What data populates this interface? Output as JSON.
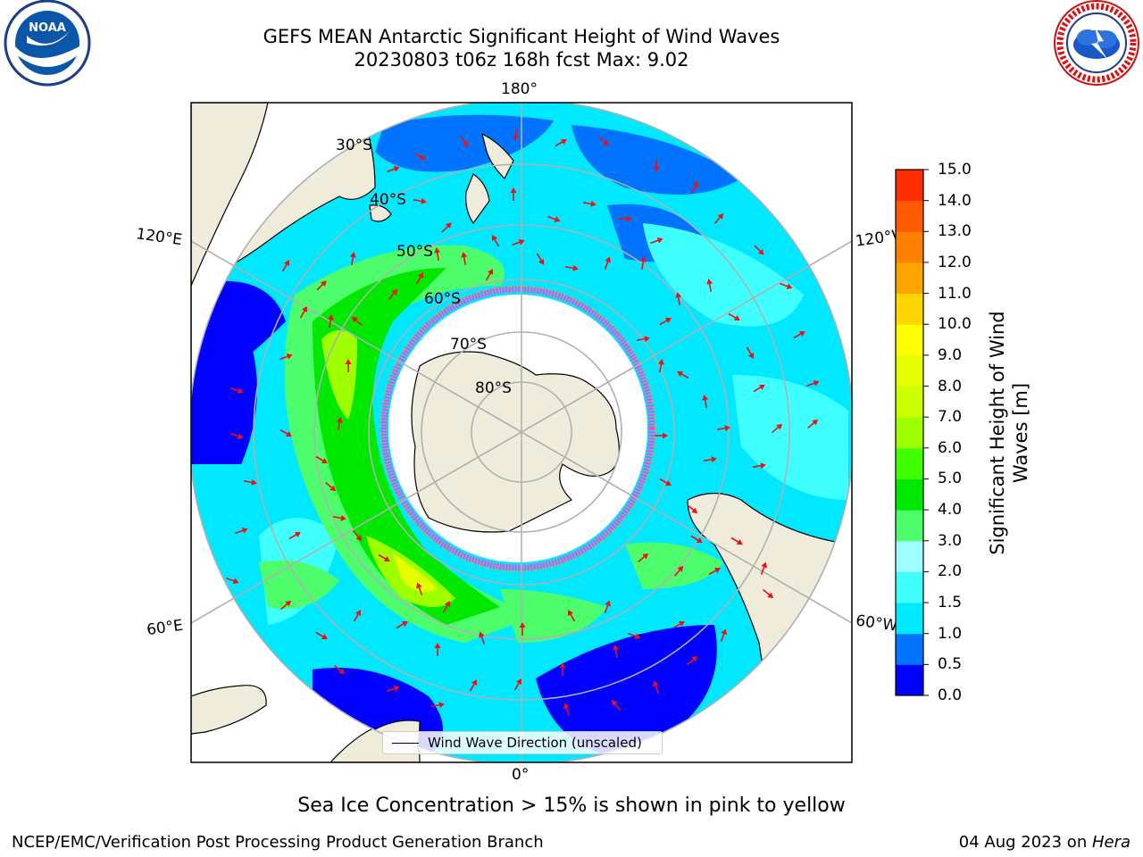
{
  "title_line1": "GEFS MEAN Antarctic Significant Height of Wind Waves",
  "title_line2": "20230803 t06z 168h fcst   Max: 9.02",
  "logos": {
    "noaa_text": "NOAA",
    "noaa_ring": "NATIONAL OCEANIC AND ATMOSPHERIC ADMINISTRATION · U.S. DEPARTMENT OF COMMERCE",
    "nws_ring": "NATIONAL WEATHER SERVICE"
  },
  "map": {
    "longitude_labels": [
      "180°",
      "120°E",
      "120°W",
      "60°E",
      "60°W",
      "0°"
    ],
    "latitude_labels": [
      "30°S",
      "40°S",
      "50°S",
      "60°S",
      "70°S",
      "80°S"
    ],
    "colors": {
      "land": "#efecdc",
      "sea_ice": "#ffffff",
      "sea_ice_edge": "#ff44cc",
      "arrows": "#ee1111",
      "grid": "#b0b0b0"
    }
  },
  "legend": {
    "label": "Wind Wave Direction (unscaled)"
  },
  "colorbar": {
    "title": "Significant Height of Wind Waves [m]",
    "tick_labels": [
      "0.0",
      "0.5",
      "1.0",
      "1.5",
      "2.0",
      "3.0",
      "4.0",
      "5.0",
      "6.0",
      "7.0",
      "8.0",
      "9.0",
      "10.0",
      "11.0",
      "12.0",
      "13.0",
      "14.0",
      "15.0"
    ],
    "colors": [
      "#0000ff",
      "#0073ff",
      "#00e8ff",
      "#40ffff",
      "#a0ffff",
      "#4dfd6c",
      "#00e800",
      "#40ff00",
      "#9dff00",
      "#ccff00",
      "#e6ff00",
      "#ffff00",
      "#ffd700",
      "#ffa500",
      "#ff8000",
      "#ff5a00",
      "#ff2d00",
      "#ff0000"
    ]
  },
  "chart_data": {
    "type": "heatmap",
    "projection": "south-polar-stereographic",
    "variable": "Significant Height of Wind Waves",
    "units": "m",
    "max_value": 9.02,
    "colorbar_range": [
      0.0,
      15.0
    ],
    "colorbar_levels": [
      0.0,
      0.5,
      1.0,
      1.5,
      2.0,
      3.0,
      4.0,
      5.0,
      6.0,
      7.0,
      8.0,
      9.0,
      10.0,
      11.0,
      12.0,
      13.0,
      14.0,
      15.0
    ]
  },
  "note": "Sea Ice Concentration > 15% is shown in pink to yellow",
  "footer": {
    "left": "NCEP/EMC/Verification Post Processing Product Generation Branch",
    "date": "04 Aug 2023 on ",
    "machine": "Hera"
  }
}
